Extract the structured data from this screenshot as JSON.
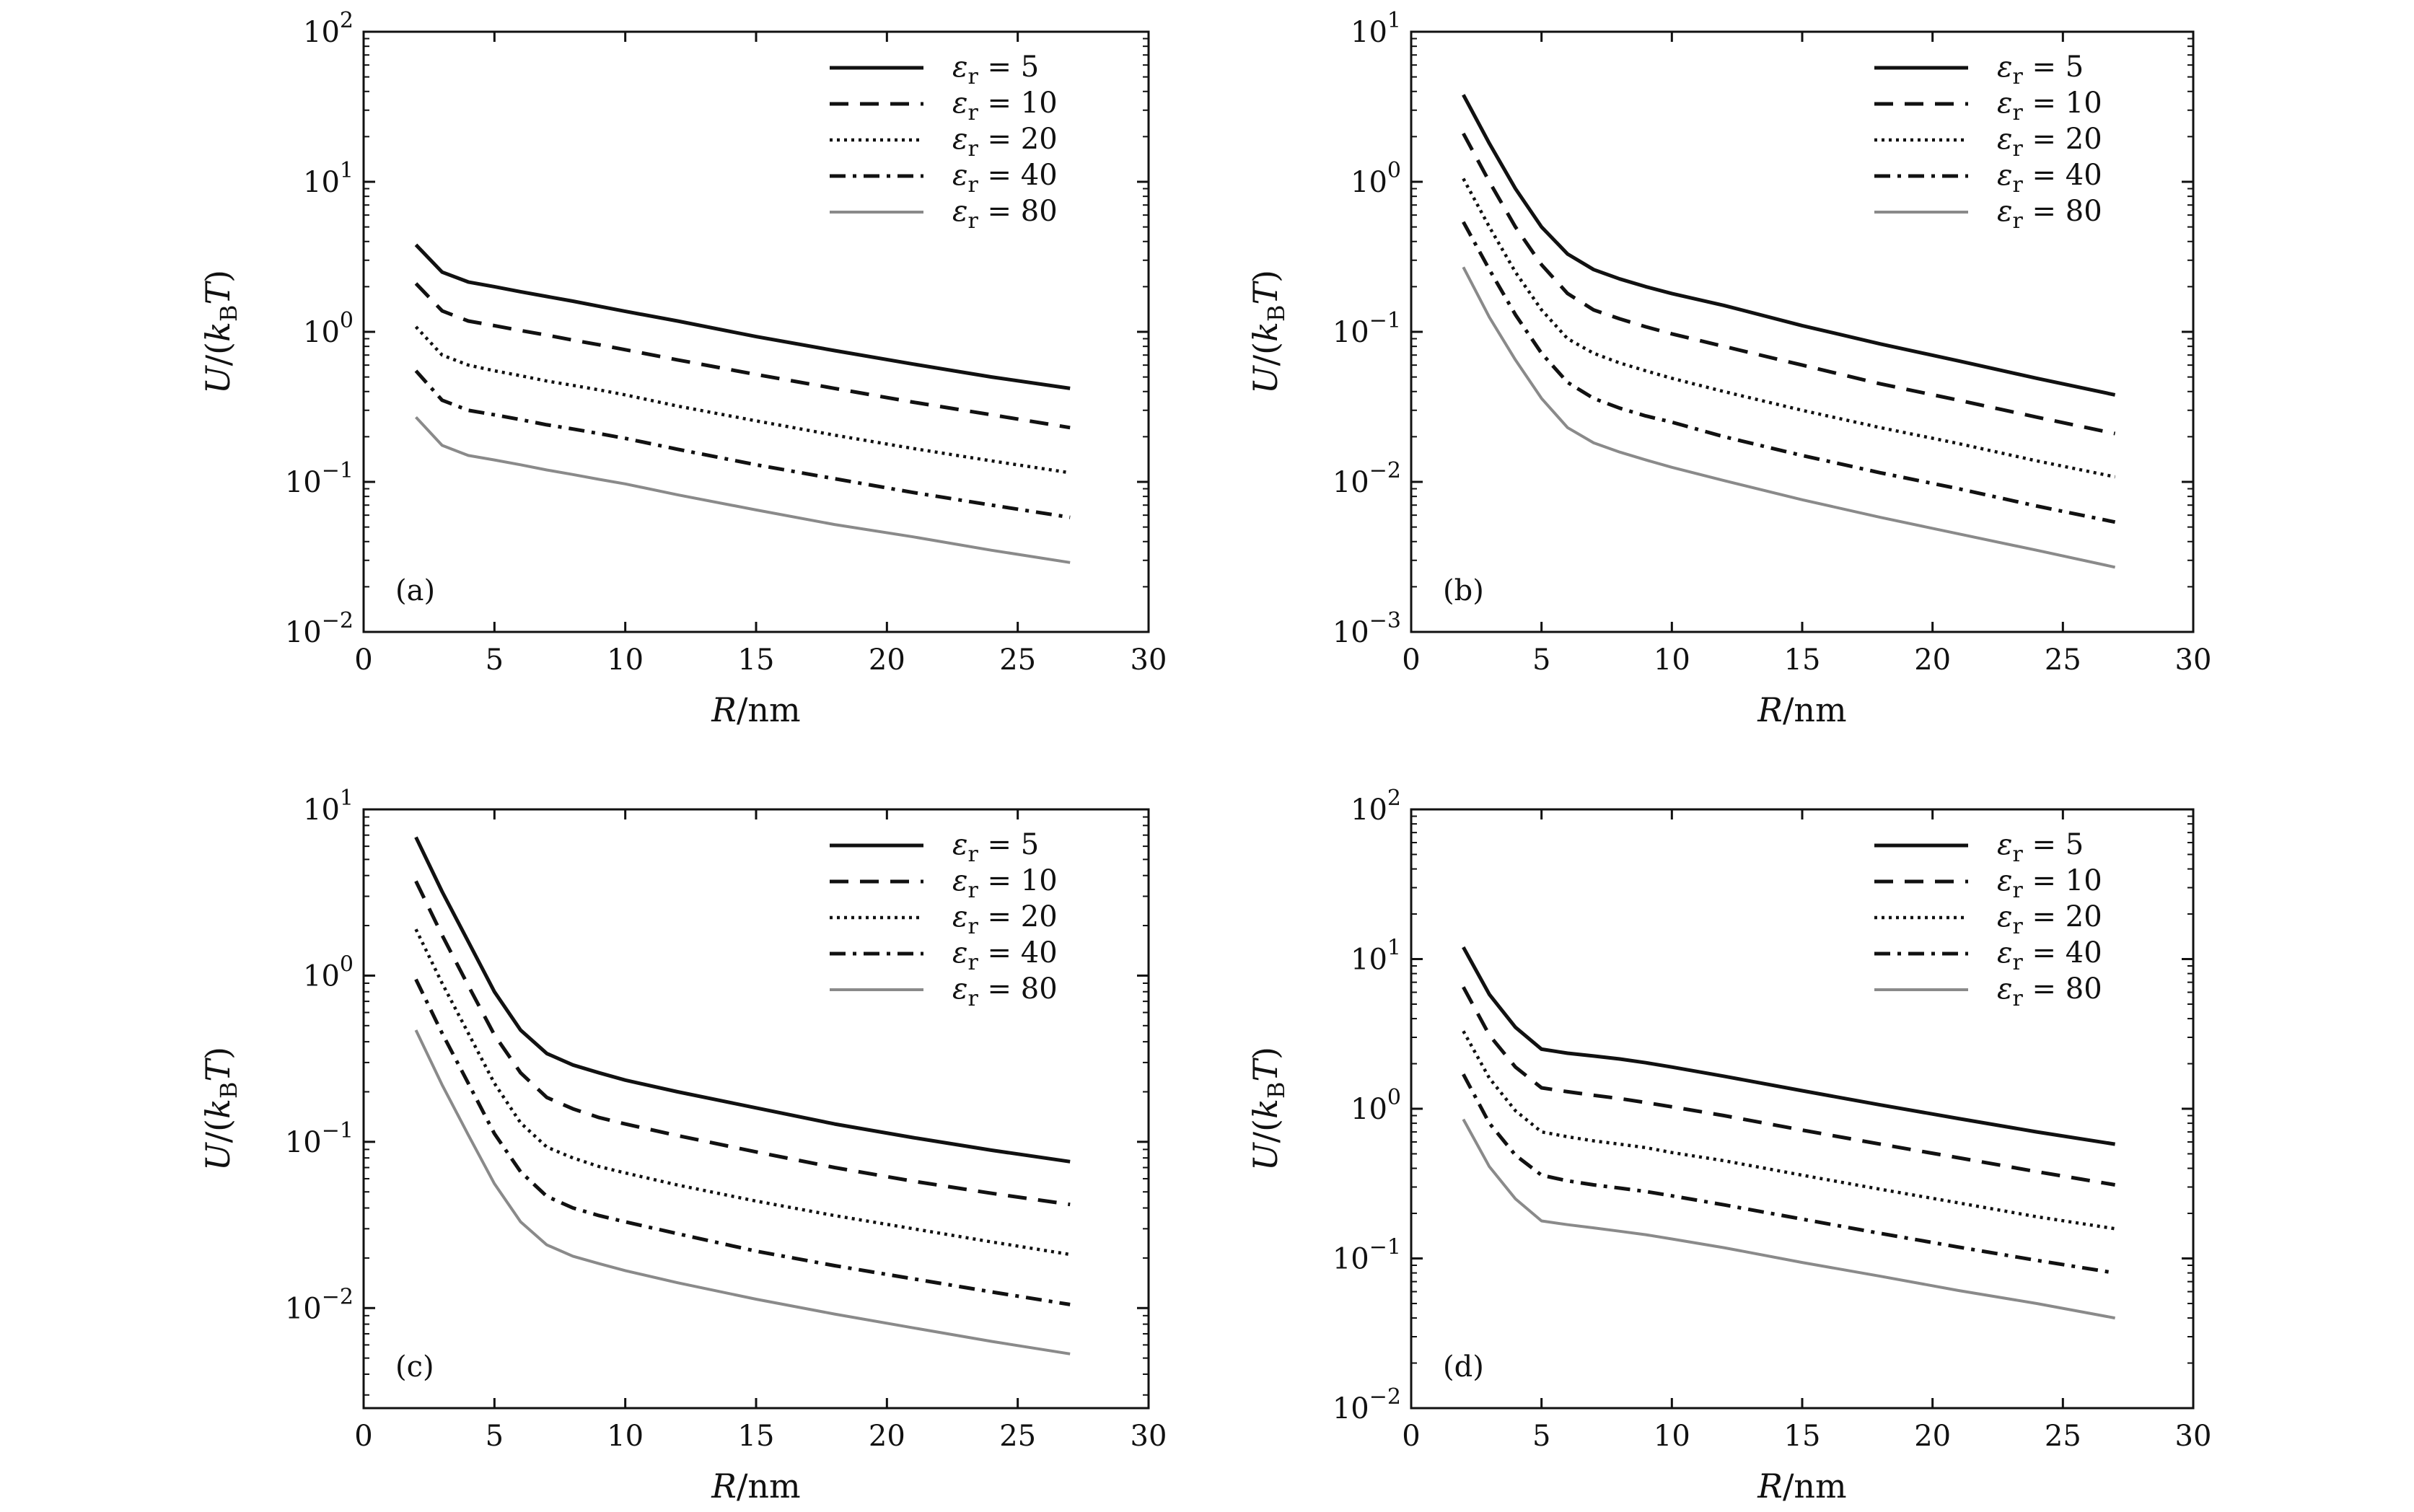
{
  "figure": {
    "panels": [
      "a",
      "b",
      "c",
      "d"
    ]
  },
  "styles": {
    "series_colors": [
      "#111111",
      "#111111",
      "#111111",
      "#111111",
      "#8a8a8a"
    ],
    "series_dash": [
      "solid",
      "dashed",
      "dotted",
      "dash-dot",
      "solid"
    ]
  },
  "chart_data": [
    {
      "type": "line",
      "panel_label": "(a)",
      "xlabel": "R/nm",
      "ylabel": "U/(kBT)",
      "xlim": [
        0,
        30
      ],
      "ylim": [
        0.01,
        100
      ],
      "yscale": "log",
      "x_ticks": [
        "0",
        "5",
        "10",
        "15",
        "20",
        "25",
        "30"
      ],
      "y_ticks": [
        {
          "base": "10",
          "exp": "−2",
          "value": 0.01
        },
        {
          "base": "10",
          "exp": "−1",
          "value": 0.1
        },
        {
          "base": "10",
          "exp": "0",
          "value": 1
        },
        {
          "base": "10",
          "exp": "1",
          "value": 10
        },
        {
          "base": "10",
          "exp": "2",
          "value": 100
        }
      ],
      "legend_position": "top-right",
      "x": [
        2,
        3,
        4,
        5,
        6,
        7,
        8,
        9,
        10,
        12,
        15,
        18,
        21,
        24,
        27
      ],
      "series": [
        {
          "name": "εr = 5",
          "symbol": "ε",
          "sub": "r",
          "rel": "= 5",
          "values": [
            3.8,
            2.5,
            2.15,
            2.0,
            1.85,
            1.72,
            1.6,
            1.48,
            1.37,
            1.18,
            0.93,
            0.75,
            0.61,
            0.5,
            0.42
          ]
        },
        {
          "name": "εr = 10",
          "symbol": "ε",
          "sub": "r",
          "rel": "= 10",
          "values": [
            2.1,
            1.38,
            1.18,
            1.1,
            1.02,
            0.95,
            0.88,
            0.82,
            0.76,
            0.65,
            0.52,
            0.42,
            0.34,
            0.28,
            0.23
          ]
        },
        {
          "name": "εr = 20",
          "symbol": "ε",
          "sub": "r",
          "rel": "= 20",
          "values": [
            1.08,
            0.7,
            0.6,
            0.55,
            0.51,
            0.47,
            0.44,
            0.41,
            0.38,
            0.32,
            0.255,
            0.205,
            0.167,
            0.138,
            0.115
          ]
        },
        {
          "name": "εr = 40",
          "symbol": "ε",
          "sub": "r",
          "rel": "= 40",
          "values": [
            0.55,
            0.35,
            0.3,
            0.28,
            0.26,
            0.24,
            0.225,
            0.21,
            0.195,
            0.165,
            0.13,
            0.105,
            0.085,
            0.07,
            0.058
          ]
        },
        {
          "name": "εr = 80",
          "symbol": "ε",
          "sub": "r",
          "rel": "= 80",
          "values": [
            0.27,
            0.175,
            0.15,
            0.14,
            0.13,
            0.12,
            0.112,
            0.104,
            0.097,
            0.082,
            0.065,
            0.052,
            0.043,
            0.035,
            0.029
          ]
        }
      ]
    },
    {
      "type": "line",
      "panel_label": "(b)",
      "xlabel": "R/nm",
      "ylabel": "U/(kBT)",
      "xlim": [
        0,
        30
      ],
      "ylim": [
        0.001,
        10
      ],
      "yscale": "log",
      "x_ticks": [
        "0",
        "5",
        "10",
        "15",
        "20",
        "25",
        "30"
      ],
      "y_ticks": [
        {
          "base": "10",
          "exp": "−3",
          "value": 0.001
        },
        {
          "base": "10",
          "exp": "−2",
          "value": 0.01
        },
        {
          "base": "10",
          "exp": "−1",
          "value": 0.1
        },
        {
          "base": "10",
          "exp": "0",
          "value": 1
        },
        {
          "base": "10",
          "exp": "1",
          "value": 10
        }
      ],
      "legend_position": "top-right",
      "x": [
        2,
        3,
        4,
        5,
        6,
        7,
        8,
        9,
        10,
        12,
        15,
        18,
        21,
        24,
        27
      ],
      "series": [
        {
          "name": "εr = 5",
          "symbol": "ε",
          "sub": "r",
          "rel": "= 5",
          "values": [
            3.8,
            1.8,
            0.9,
            0.5,
            0.33,
            0.26,
            0.225,
            0.2,
            0.18,
            0.15,
            0.11,
            0.083,
            0.064,
            0.049,
            0.038
          ]
        },
        {
          "name": "εr = 10",
          "symbol": "ε",
          "sub": "r",
          "rel": "= 10",
          "values": [
            2.1,
            1.0,
            0.5,
            0.28,
            0.18,
            0.14,
            0.122,
            0.108,
            0.097,
            0.08,
            0.06,
            0.045,
            0.035,
            0.027,
            0.021
          ]
        },
        {
          "name": "εr = 20",
          "symbol": "ε",
          "sub": "r",
          "rel": "= 20",
          "values": [
            1.05,
            0.5,
            0.25,
            0.14,
            0.09,
            0.072,
            0.062,
            0.055,
            0.049,
            0.04,
            0.03,
            0.023,
            0.018,
            0.0138,
            0.0108
          ]
        },
        {
          "name": "εr = 40",
          "symbol": "ε",
          "sub": "r",
          "rel": "= 40",
          "values": [
            0.54,
            0.26,
            0.13,
            0.072,
            0.046,
            0.036,
            0.031,
            0.0275,
            0.025,
            0.02,
            0.015,
            0.0115,
            0.009,
            0.0069,
            0.0054
          ]
        },
        {
          "name": "εr = 80",
          "symbol": "ε",
          "sub": "r",
          "rel": "= 80",
          "values": [
            0.27,
            0.125,
            0.065,
            0.036,
            0.023,
            0.0182,
            0.0158,
            0.014,
            0.0125,
            0.0102,
            0.0076,
            0.0058,
            0.0045,
            0.0035,
            0.0027
          ]
        }
      ]
    },
    {
      "type": "line",
      "panel_label": "(c)",
      "xlabel": "R/nm",
      "ylabel": "U/(kBT)",
      "xlim": [
        0,
        30
      ],
      "ylim": [
        0.0025,
        10
      ],
      "yscale": "log",
      "x_ticks": [
        "0",
        "5",
        "10",
        "15",
        "20",
        "25",
        "30"
      ],
      "y_ticks": [
        {
          "base": "10",
          "exp": "−2",
          "value": 0.01
        },
        {
          "base": "10",
          "exp": "−1",
          "value": 0.1
        },
        {
          "base": "10",
          "exp": "0",
          "value": 1
        },
        {
          "base": "10",
          "exp": "1",
          "value": 10
        }
      ],
      "legend_position": "top-right",
      "x": [
        2,
        3,
        4,
        5,
        6,
        7,
        8,
        9,
        10,
        12,
        15,
        18,
        21,
        24,
        27
      ],
      "series": [
        {
          "name": "εr = 5",
          "symbol": "ε",
          "sub": "r",
          "rel": "= 5",
          "values": [
            6.8,
            3.2,
            1.6,
            0.8,
            0.47,
            0.34,
            0.29,
            0.26,
            0.235,
            0.2,
            0.16,
            0.128,
            0.106,
            0.089,
            0.076
          ]
        },
        {
          "name": "εr = 10",
          "symbol": "ε",
          "sub": "r",
          "rel": "= 10",
          "values": [
            3.7,
            1.75,
            0.87,
            0.44,
            0.26,
            0.185,
            0.158,
            0.14,
            0.128,
            0.109,
            0.087,
            0.07,
            0.058,
            0.049,
            0.042
          ]
        },
        {
          "name": "εr = 20",
          "symbol": "ε",
          "sub": "r",
          "rel": "= 20",
          "values": [
            1.9,
            0.9,
            0.45,
            0.225,
            0.13,
            0.093,
            0.08,
            0.071,
            0.065,
            0.055,
            0.044,
            0.036,
            0.03,
            0.025,
            0.021
          ]
        },
        {
          "name": "εr = 40",
          "symbol": "ε",
          "sub": "r",
          "rel": "= 40",
          "values": [
            0.95,
            0.45,
            0.225,
            0.112,
            0.066,
            0.047,
            0.04,
            0.036,
            0.033,
            0.028,
            0.022,
            0.018,
            0.015,
            0.0125,
            0.0105
          ]
        },
        {
          "name": "εr = 80",
          "symbol": "ε",
          "sub": "r",
          "rel": "= 80",
          "values": [
            0.47,
            0.22,
            0.11,
            0.056,
            0.033,
            0.024,
            0.0205,
            0.0185,
            0.0168,
            0.0142,
            0.0113,
            0.0092,
            0.0076,
            0.0063,
            0.0053
          ]
        }
      ]
    },
    {
      "type": "line",
      "panel_label": "(d)",
      "xlabel": "R/nm",
      "ylabel": "U/(kBT)",
      "xlim": [
        0,
        30
      ],
      "ylim": [
        0.01,
        100
      ],
      "yscale": "log",
      "x_ticks": [
        "0",
        "5",
        "10",
        "15",
        "20",
        "25",
        "30"
      ],
      "y_ticks": [
        {
          "base": "10",
          "exp": "−2",
          "value": 0.01
        },
        {
          "base": "10",
          "exp": "−1",
          "value": 0.1
        },
        {
          "base": "10",
          "exp": "0",
          "value": 1
        },
        {
          "base": "10",
          "exp": "1",
          "value": 10
        },
        {
          "base": "10",
          "exp": "2",
          "value": 100
        }
      ],
      "legend_position": "top-right",
      "x": [
        2,
        3,
        4,
        5,
        6,
        7,
        8,
        9,
        10,
        12,
        15,
        18,
        21,
        24,
        27
      ],
      "series": [
        {
          "name": "εr = 5",
          "symbol": "ε",
          "sub": "r",
          "rel": "= 5",
          "values": [
            12,
            5.8,
            3.5,
            2.5,
            2.35,
            2.25,
            2.15,
            2.03,
            1.9,
            1.65,
            1.32,
            1.06,
            0.86,
            0.7,
            0.58
          ]
        },
        {
          "name": "εr = 10",
          "symbol": "ε",
          "sub": "r",
          "rel": "= 10",
          "values": [
            6.5,
            3.1,
            1.9,
            1.38,
            1.3,
            1.23,
            1.17,
            1.1,
            1.03,
            0.9,
            0.72,
            0.58,
            0.47,
            0.38,
            0.31
          ]
        },
        {
          "name": "εr = 20",
          "symbol": "ε",
          "sub": "r",
          "rel": "= 20",
          "values": [
            3.3,
            1.6,
            0.97,
            0.7,
            0.65,
            0.61,
            0.58,
            0.55,
            0.51,
            0.45,
            0.36,
            0.29,
            0.235,
            0.19,
            0.158
          ]
        },
        {
          "name": "εr = 40",
          "symbol": "ε",
          "sub": "r",
          "rel": "= 40",
          "values": [
            1.7,
            0.8,
            0.49,
            0.36,
            0.33,
            0.31,
            0.295,
            0.28,
            0.262,
            0.228,
            0.183,
            0.147,
            0.119,
            0.097,
            0.08
          ]
        },
        {
          "name": "εr = 80",
          "symbol": "ε",
          "sub": "r",
          "rel": "= 80",
          "values": [
            0.85,
            0.41,
            0.25,
            0.178,
            0.168,
            0.16,
            0.152,
            0.144,
            0.135,
            0.118,
            0.094,
            0.076,
            0.061,
            0.05,
            0.04
          ]
        }
      ]
    }
  ]
}
